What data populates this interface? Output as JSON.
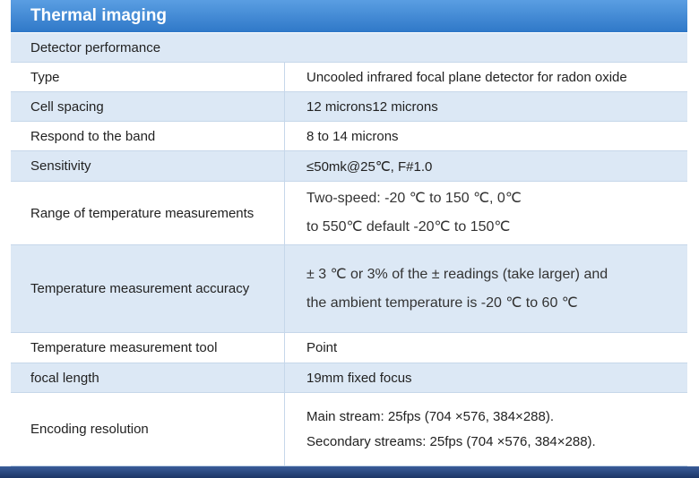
{
  "header": {
    "title": "Thermal imaging"
  },
  "table": {
    "section": "Detector performance",
    "rows": [
      {
        "label": "Type",
        "lines": [
          "Uncooled infrared focal plane detector for radon oxide"
        ]
      },
      {
        "label": "Cell spacing",
        "lines": [
          "12 microns12 microns"
        ]
      },
      {
        "label": "Respond to the band",
        "lines": [
          "8 to 14 microns"
        ]
      },
      {
        "label": "Sensitivity",
        "lines": [
          "≤50mk@25℃, F#1.0"
        ]
      },
      {
        "label": "Range of temperature measurements",
        "lines": [
          "Two-speed: -20 ℃ to 150 ℃, 0℃",
          "to 550℃ default -20℃ to 150℃"
        ]
      },
      {
        "label": "Temperature measurement accuracy",
        "lines": [
          "± 3 ℃ or 3% of the ± readings (take larger) and",
          "the ambient temperature is -20 ℃ to 60 ℃"
        ]
      },
      {
        "label": "Temperature measurement tool",
        "lines": [
          "Point"
        ]
      },
      {
        "label": "focal length",
        "lines": [
          "19mm fixed focus"
        ]
      },
      {
        "label": "Encoding resolution",
        "lines": [
          "Main stream: 25fps (704 ×576, 384×288).",
          "Secondary streams: 25fps (704 ×576, 384×288)."
        ]
      }
    ]
  }
}
